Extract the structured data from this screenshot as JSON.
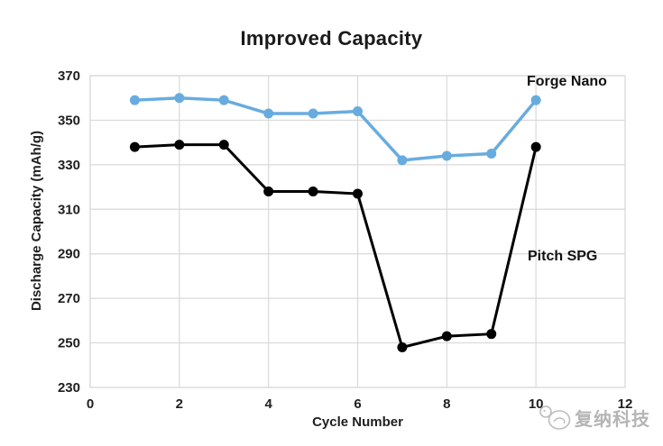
{
  "title": "Improved Capacity",
  "watermark": {
    "logo": "mascot-logo",
    "text": "复纳科技",
    "color": "#b8b8b8"
  },
  "colors": {
    "grid": "#d9d9d9",
    "tick_text": "#1f1f1f",
    "title_text": "#1a1a1a"
  },
  "chart_data": {
    "type": "line",
    "title": "Improved Capacity",
    "xlabel": "Cycle Number",
    "ylabel": "Discharge Capacity (mAh/g)",
    "x": [
      1,
      2,
      3,
      4,
      5,
      6,
      7,
      8,
      9,
      10
    ],
    "series": [
      {
        "name": "Forge Nano",
        "color": "#68acdf",
        "marker_radius": 5.5,
        "line_width": 3.5,
        "values": [
          359,
          360,
          359,
          353,
          353,
          354,
          332,
          334,
          335,
          359
        ]
      },
      {
        "name": "Pitch SPG",
        "color": "#000000",
        "marker_radius": 5.5,
        "line_width": 3,
        "values": [
          338,
          339,
          339,
          318,
          318,
          317,
          248,
          253,
          254,
          338
        ]
      }
    ],
    "xlim": [
      0,
      12
    ],
    "ylim": [
      230,
      370
    ],
    "x_ticks": [
      0,
      2,
      4,
      6,
      8,
      10,
      12
    ],
    "y_ticks": [
      230,
      250,
      270,
      290,
      310,
      330,
      350,
      370
    ],
    "grid": true,
    "legend_position": "inline-labels-right"
  }
}
